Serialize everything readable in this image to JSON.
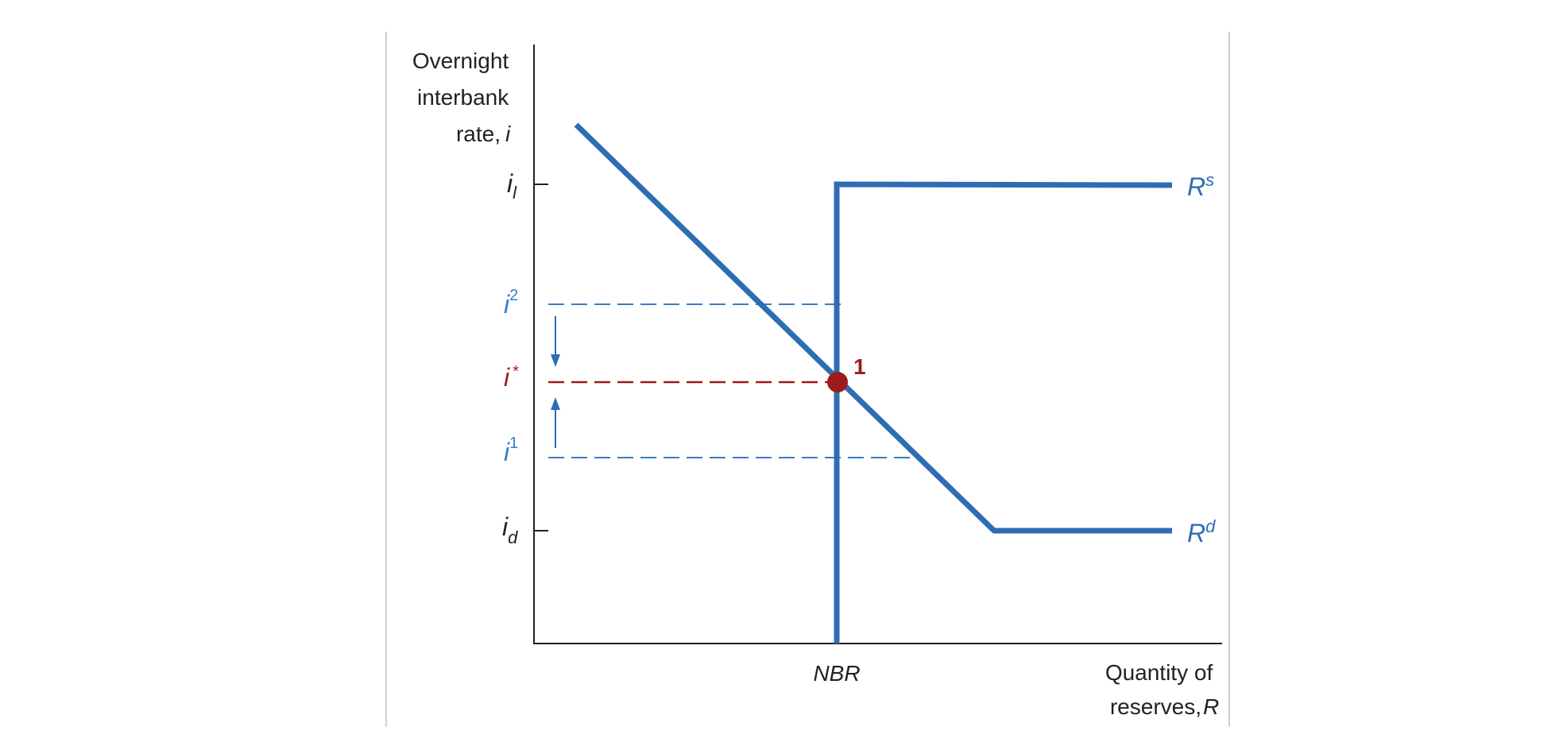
{
  "figure": {
    "y_axis_title_lines": [
      "Overnight",
      "interbank",
      "rate, ",
      "i"
    ],
    "x_axis_title_lines": [
      "Quantity of",
      "reserves, ",
      "R"
    ],
    "x_tick": "NBR",
    "y_ticks": {
      "il": {
        "base": "i",
        "sub": "l"
      },
      "i2": {
        "base": "i",
        "sup": "2"
      },
      "istar": {
        "base": "i",
        "sup": "*"
      },
      "i1": {
        "base": "i",
        "sup": "1"
      },
      "id": {
        "base": "i",
        "sub": "d"
      }
    },
    "supply_label": {
      "base": "R",
      "sup": "s"
    },
    "demand_label": {
      "base": "R",
      "sup": "d"
    },
    "equilibrium_label": "1",
    "colors": {
      "curve": "#2e6db4",
      "dashed_blue": "#3a7cc4",
      "equilibrium": "#9e1b1b",
      "axis": "#222222",
      "frame": "#d0d0d0"
    }
  }
}
